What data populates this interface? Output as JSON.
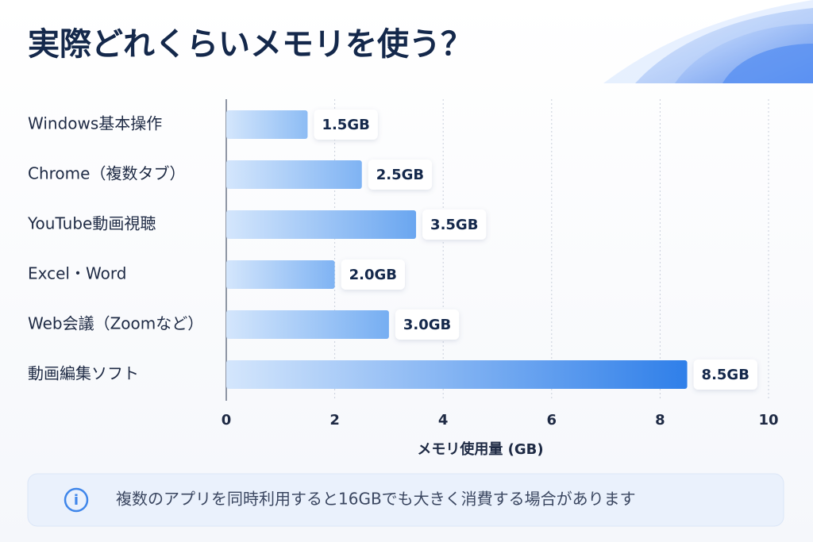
{
  "chart_data": {
    "type": "barh",
    "title": "実際どれくらいメモリを使う？",
    "categories": [
      "Windows基本操作",
      "Chrome（複数タブ）",
      "YouTube動画視聴",
      "Excel・Word",
      "Web会議（Zoomなど）",
      "動画編集ソフト"
    ],
    "values": [
      1.5,
      2.5,
      3.5,
      2.0,
      3.0,
      8.5
    ],
    "value_labels": [
      "1.5GB",
      "2.5GB",
      "3.5GB",
      "2.0GB",
      "3.0GB",
      "8.5GB"
    ],
    "colors": [
      "#8dbcf4",
      "#7fb3f3",
      "#6aa6f0",
      "#7fb3f3",
      "#76aef2",
      "#2f7fe9"
    ],
    "xlim": [
      0,
      10
    ],
    "xticks": [
      0,
      2,
      4,
      6,
      8,
      10
    ],
    "xlabel": "メモリ使用量 (GB)",
    "grid": true,
    "annotation": "複数のアプリを同時利用すると16GBでも大きく消費する場合があります"
  }
}
